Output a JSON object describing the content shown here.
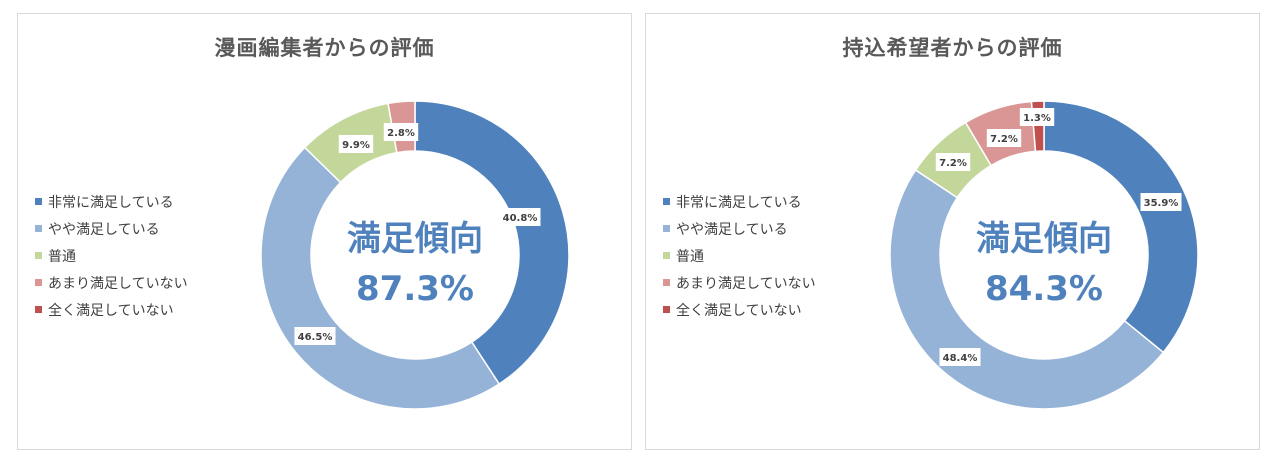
{
  "legend_colors": [
    "#4f81bd",
    "#95b3d7",
    "#c4d79b",
    "#da9694",
    "#c0504d"
  ],
  "chart_data": [
    {
      "type": "pie",
      "title": "漫画編集者からの評価",
      "categories": [
        "非常に満足している",
        "やや満足している",
        "普通",
        "あまり満足していない",
        "全く満足していない"
      ],
      "values": [
        40.8,
        46.5,
        9.9,
        2.8,
        0
      ],
      "value_labels": [
        "40.8%",
        "46.5%",
        "9.9%",
        "2.8%",
        ""
      ],
      "center_title": "満足傾向",
      "center_value": "87.3%",
      "legend_position": "left"
    },
    {
      "type": "pie",
      "title": "持込希望者からの評価",
      "categories": [
        "非常に満足している",
        "やや満足している",
        "普通",
        "あまり満足していない",
        "全く満足していない"
      ],
      "values": [
        35.9,
        48.4,
        7.2,
        7.2,
        1.3
      ],
      "value_labels": [
        "35.9%",
        "48.4%",
        "7.2%",
        "7.2%",
        "1.3%"
      ],
      "center_title": "満足傾向",
      "center_value": "84.3%",
      "legend_position": "left"
    }
  ]
}
